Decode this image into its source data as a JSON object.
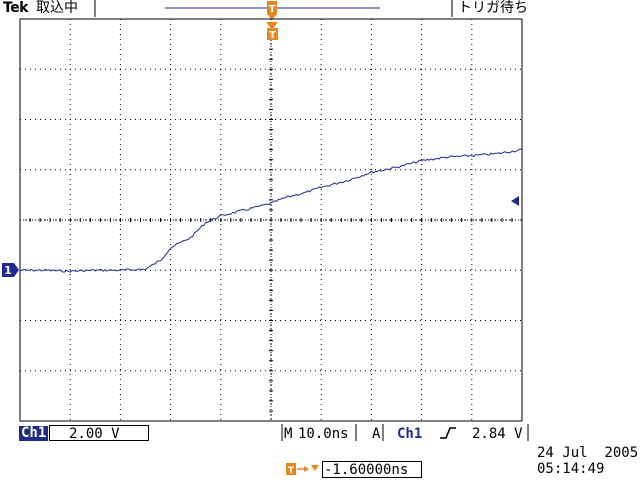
{
  "header": {
    "brand": "Tek",
    "acquisition_status": "取込中",
    "trigger_status": "トリガ待ち"
  },
  "colors": {
    "trace": "#1f2a8c",
    "marker": "#e8871e",
    "grid": "#000000"
  },
  "channel": {
    "label": "Ch1",
    "scale": "2.00 V"
  },
  "horizontal": {
    "mode": "M",
    "scale": "10.0ns"
  },
  "trigger": {
    "mode": "A",
    "source": "Ch1",
    "slope_icon": "rising-edge-icon",
    "level": "2.84 V",
    "offset": "-1.60000ns"
  },
  "timestamp": {
    "date": "24 Jul  2005",
    "time": "05:14:49"
  },
  "markers": {
    "trigger_label": "T",
    "channel_label": "1"
  },
  "chart_data": {
    "type": "line",
    "x_divisions": 10,
    "y_divisions": 8,
    "series": [
      {
        "values_div": [
          [
            -5.0,
            -1.0
          ],
          [
            -4.5,
            -1.0
          ],
          [
            -4.0,
            -1.02
          ],
          [
            -3.5,
            -1.0
          ],
          [
            -3.0,
            -1.0
          ],
          [
            -2.5,
            -0.98
          ],
          [
            -2.2,
            -0.8
          ],
          [
            -2.0,
            -0.55
          ],
          [
            -1.8,
            -0.45
          ],
          [
            -1.6,
            -0.35
          ],
          [
            -1.3,
            -0.05
          ],
          [
            -1.0,
            0.08
          ],
          [
            -0.6,
            0.18
          ],
          [
            -0.2,
            0.28
          ],
          [
            0.0,
            0.33
          ],
          [
            0.3,
            0.45
          ],
          [
            0.7,
            0.55
          ],
          [
            1.0,
            0.65
          ],
          [
            1.5,
            0.78
          ],
          [
            2.0,
            0.95
          ],
          [
            2.5,
            1.05
          ],
          [
            3.0,
            1.18
          ],
          [
            3.5,
            1.25
          ],
          [
            4.0,
            1.28
          ],
          [
            4.5,
            1.32
          ],
          [
            5.0,
            1.4
          ]
        ]
      }
    ],
    "trigger_level_div": 0.36,
    "channel_ground_div": -1.0
  }
}
